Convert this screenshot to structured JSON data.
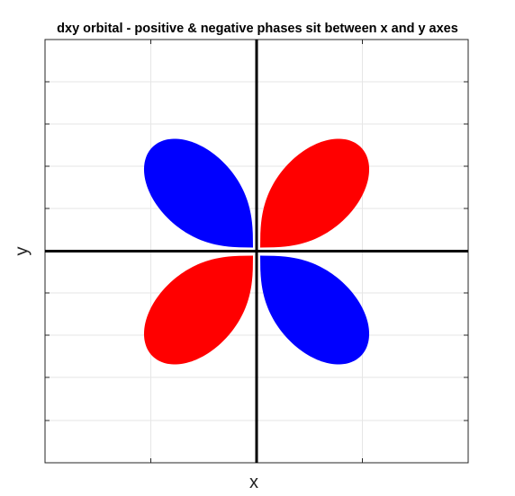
{
  "title": "dxy orbital - positive & negative phases sit between x and y axes",
  "xlabel": "x",
  "ylabel": "y",
  "colors": {
    "positive": "#ff0000",
    "negative": "#0000ff",
    "axes": "#000000",
    "grid": "#e6e6e6",
    "frame": "#262626"
  },
  "lobes": [
    {
      "name": "lobe-upper-right",
      "quadrant": "upper-right",
      "phase": "positive"
    },
    {
      "name": "lobe-upper-left",
      "quadrant": "upper-left",
      "phase": "negative"
    },
    {
      "name": "lobe-lower-left",
      "quadrant": "lower-left",
      "phase": "positive"
    },
    {
      "name": "lobe-lower-right",
      "quadrant": "lower-right",
      "phase": "negative"
    }
  ]
}
